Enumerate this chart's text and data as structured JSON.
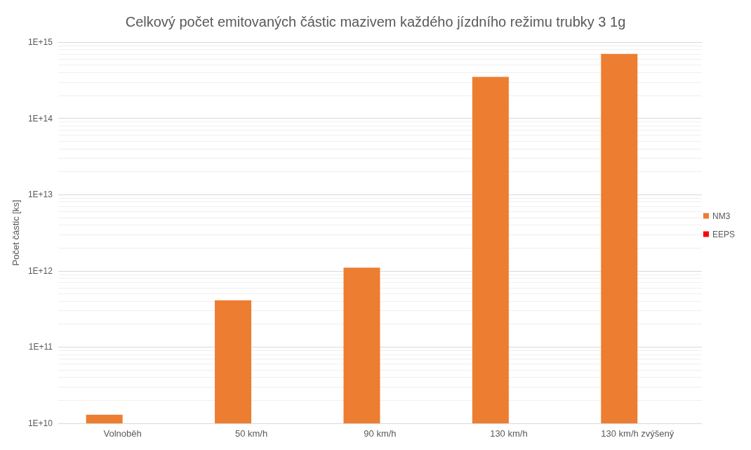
{
  "chart_data": {
    "type": "bar",
    "title": "Celkový počet emitovaných částic mazivem každého jízdního režimu trubky 3 1g",
    "ylabel": "Počet částic [ks]",
    "categories": [
      "Volnoběh",
      "50 km/h",
      "90 km/h",
      "130 km/h",
      "130 km/h zvýšený"
    ],
    "series": [
      {
        "name": "NM3",
        "color": "#ed7d31",
        "values": [
          13000000000.0,
          410000000000.0,
          1100000000000.0,
          350000000000000.0,
          700000000000000.0
        ]
      },
      {
        "name": "EEPS",
        "color": "#ff0000",
        "values": [
          null,
          null,
          null,
          null,
          null
        ]
      }
    ],
    "log": "y",
    "ylim": [
      10000000000.0,
      1000000000000000.0
    ],
    "yticks": [
      {
        "value": 10000000000.0,
        "label": "1E+10"
      },
      {
        "value": 100000000000.0,
        "label": "1E+11"
      },
      {
        "value": 1000000000000.0,
        "label": "1E+12"
      },
      {
        "value": 10000000000000.0,
        "label": "1E+13"
      },
      {
        "value": 100000000000000.0,
        "label": "1E+14"
      },
      {
        "value": 1000000000000000.0,
        "label": "1E+15"
      }
    ],
    "grid": true,
    "legend": "right"
  }
}
